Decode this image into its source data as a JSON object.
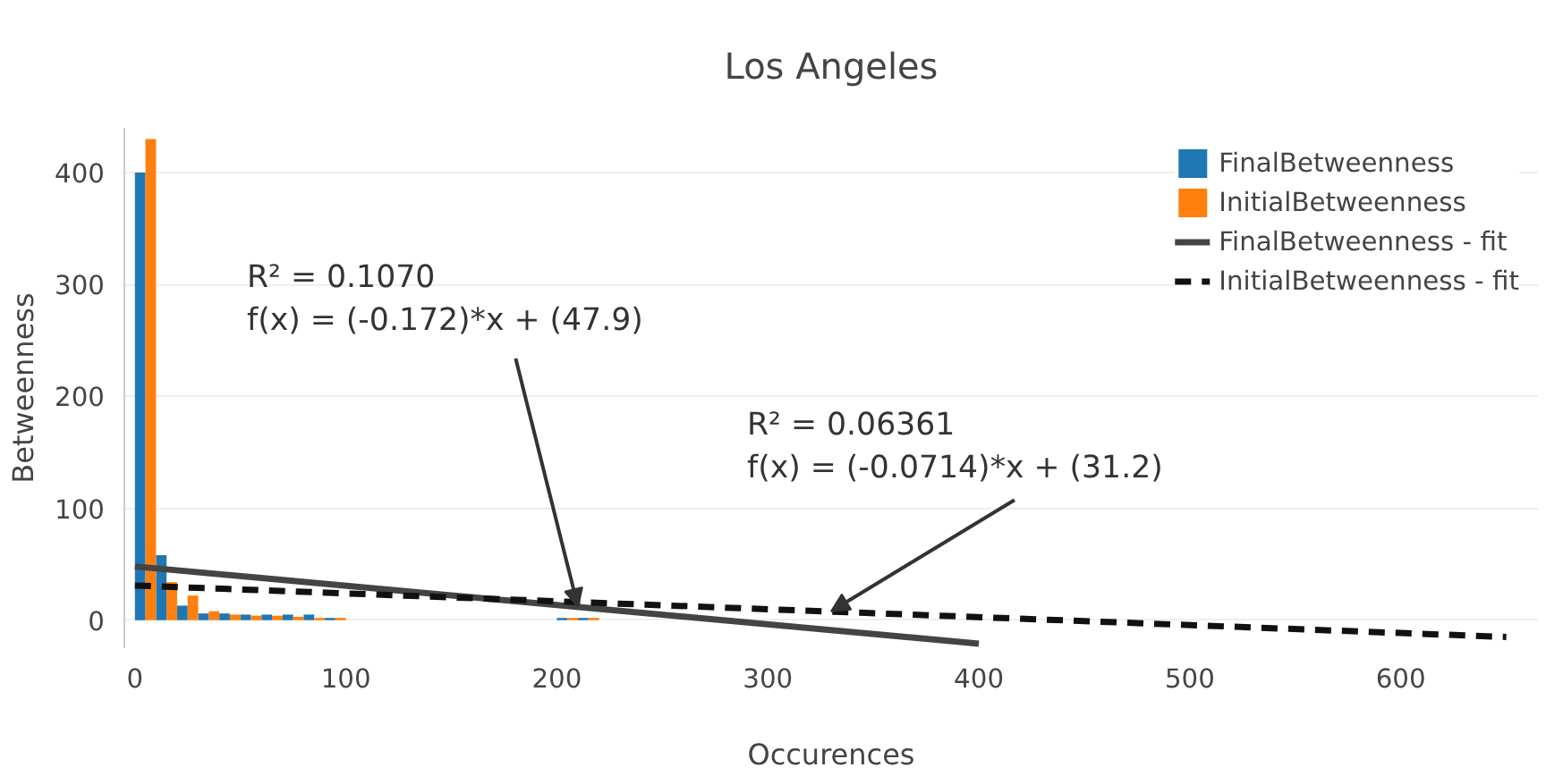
{
  "chart_data": {
    "type": "bar",
    "title": "Los Angeles",
    "xlabel": "Occurences",
    "ylabel": "Betweenness",
    "x": [
      5,
      15,
      25,
      35,
      45,
      55,
      65,
      75,
      85,
      95,
      205,
      215
    ],
    "series": [
      {
        "name": "FinalBetweenness",
        "color": "#1f77b4",
        "values": [
          400,
          58,
          13,
          6,
          6,
          5,
          5,
          5,
          5,
          2,
          2,
          2
        ]
      },
      {
        "name": "InitialBetweenness",
        "color": "#ff7f0e",
        "values": [
          430,
          34,
          22,
          8,
          5,
          4,
          4,
          3,
          2,
          2,
          2,
          2
        ]
      },
      {
        "name": "FinalBetweenness - fit",
        "type": "line",
        "color": "#444444",
        "line_style": "solid",
        "x": [
          0,
          400
        ],
        "values": [
          48,
          -21
        ]
      },
      {
        "name": "InitialBetweenness - fit",
        "type": "line",
        "color": "#111111",
        "line_style": "dashed",
        "x": [
          0,
          650
        ],
        "values": [
          31,
          -15
        ]
      }
    ],
    "annotations": [
      {
        "text": "R² = 0.1070\nf(x) = (-0.172)*x + (47.9)",
        "x": 210,
        "y": 12
      },
      {
        "text": "R² = 0.06361\nf(x) = (-0.0714)*x + (31.2)",
        "x": 330,
        "y": 8
      }
    ],
    "xlim": [
      -5,
      665
    ],
    "ylim": [
      -25,
      440
    ],
    "xticks": [
      0,
      100,
      200,
      300,
      400,
      500,
      600
    ],
    "yticks": [
      0,
      100,
      200,
      300,
      400
    ],
    "grid": "y",
    "legend": "top right"
  }
}
